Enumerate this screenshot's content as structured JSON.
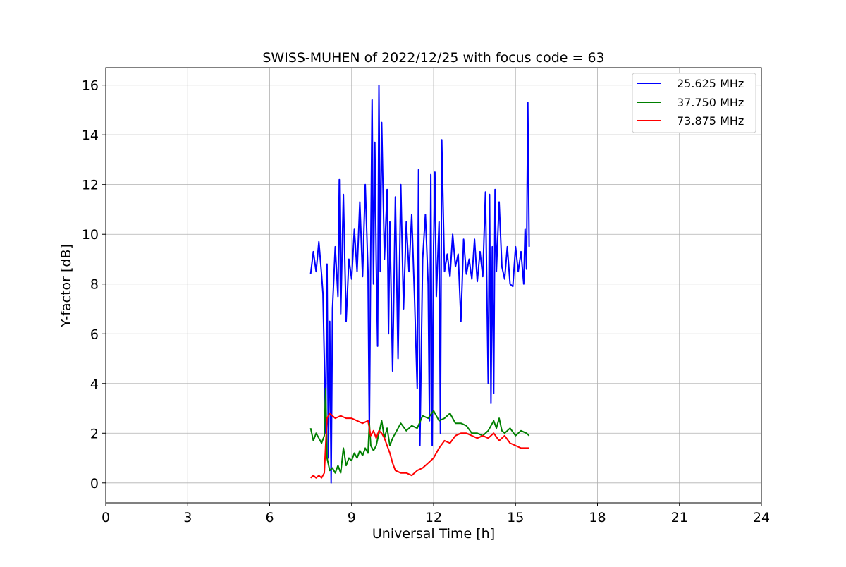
{
  "chart_data": {
    "type": "line",
    "title": "SWISS-MUHEN of 2022/12/25 with focus code = 63",
    "xlabel": "Universal Time [h]",
    "ylabel": "Y-factor [dB]",
    "xlim": [
      0,
      24
    ],
    "ylim": [
      -0.8,
      16.7
    ],
    "xticks": [
      0,
      3,
      6,
      9,
      12,
      15,
      18,
      21,
      24
    ],
    "yticks": [
      0,
      2,
      4,
      6,
      8,
      10,
      12,
      14,
      16
    ],
    "grid": true,
    "legend_position": "top-right",
    "series": [
      {
        "name": "25.625 MHz",
        "color": "#0000ff",
        "points": [
          [
            7.5,
            8.4
          ],
          [
            7.6,
            9.3
          ],
          [
            7.7,
            8.5
          ],
          [
            7.8,
            9.7
          ],
          [
            7.9,
            8.4
          ],
          [
            7.95,
            7.6
          ],
          [
            8.0,
            5.0
          ],
          [
            8.05,
            2.0
          ],
          [
            8.1,
            8.8
          ],
          [
            8.15,
            1.0
          ],
          [
            8.2,
            6.5
          ],
          [
            8.25,
            0.0
          ],
          [
            8.3,
            7.0
          ],
          [
            8.4,
            9.5
          ],
          [
            8.5,
            7.5
          ],
          [
            8.55,
            12.2
          ],
          [
            8.6,
            6.8
          ],
          [
            8.7,
            11.6
          ],
          [
            8.8,
            6.5
          ],
          [
            8.9,
            9.0
          ],
          [
            9.0,
            8.2
          ],
          [
            9.1,
            10.2
          ],
          [
            9.2,
            8.5
          ],
          [
            9.3,
            11.3
          ],
          [
            9.4,
            8.3
          ],
          [
            9.5,
            12.0
          ],
          [
            9.6,
            8.5
          ],
          [
            9.65,
            2.0
          ],
          [
            9.7,
            9.5
          ],
          [
            9.75,
            15.4
          ],
          [
            9.8,
            8.0
          ],
          [
            9.85,
            13.7
          ],
          [
            9.9,
            9.0
          ],
          [
            9.95,
            5.5
          ],
          [
            10.0,
            16.0
          ],
          [
            10.05,
            8.5
          ],
          [
            10.1,
            14.5
          ],
          [
            10.2,
            9.0
          ],
          [
            10.3,
            11.8
          ],
          [
            10.35,
            6.0
          ],
          [
            10.4,
            10.5
          ],
          [
            10.5,
            4.5
          ],
          [
            10.6,
            11.5
          ],
          [
            10.7,
            5.0
          ],
          [
            10.8,
            12.0
          ],
          [
            10.9,
            7.0
          ],
          [
            11.0,
            10.5
          ],
          [
            11.1,
            8.5
          ],
          [
            11.2,
            10.8
          ],
          [
            11.3,
            7.5
          ],
          [
            11.4,
            3.8
          ],
          [
            11.45,
            12.6
          ],
          [
            11.5,
            1.5
          ],
          [
            11.6,
            9.0
          ],
          [
            11.7,
            10.8
          ],
          [
            11.8,
            8.0
          ],
          [
            11.85,
            2.5
          ],
          [
            11.9,
            12.4
          ],
          [
            11.95,
            1.5
          ],
          [
            12.0,
            9.5
          ],
          [
            12.05,
            12.5
          ],
          [
            12.1,
            7.5
          ],
          [
            12.2,
            10.5
          ],
          [
            12.25,
            2.0
          ],
          [
            12.3,
            13.8
          ],
          [
            12.4,
            8.5
          ],
          [
            12.5,
            9.2
          ],
          [
            12.6,
            8.3
          ],
          [
            12.7,
            10.0
          ],
          [
            12.8,
            8.7
          ],
          [
            12.9,
            9.2
          ],
          [
            13.0,
            6.5
          ],
          [
            13.1,
            9.8
          ],
          [
            13.2,
            8.4
          ],
          [
            13.3,
            9.0
          ],
          [
            13.4,
            8.2
          ],
          [
            13.5,
            9.8
          ],
          [
            13.6,
            8.1
          ],
          [
            13.7,
            9.3
          ],
          [
            13.8,
            8.3
          ],
          [
            13.9,
            11.7
          ],
          [
            14.0,
            4.0
          ],
          [
            14.05,
            11.6
          ],
          [
            14.1,
            3.2
          ],
          [
            14.15,
            9.5
          ],
          [
            14.2,
            3.6
          ],
          [
            14.25,
            11.8
          ],
          [
            14.3,
            8.5
          ],
          [
            14.4,
            11.3
          ],
          [
            14.5,
            8.7
          ],
          [
            14.6,
            8.2
          ],
          [
            14.7,
            9.5
          ],
          [
            14.8,
            8.0
          ],
          [
            14.9,
            7.9
          ],
          [
            15.0,
            9.5
          ],
          [
            15.1,
            8.5
          ],
          [
            15.2,
            9.3
          ],
          [
            15.3,
            8.0
          ],
          [
            15.35,
            10.2
          ],
          [
            15.4,
            8.6
          ],
          [
            15.45,
            15.3
          ],
          [
            15.5,
            9.5
          ]
        ]
      },
      {
        "name": "37.750 MHz",
        "color": "#008000",
        "points": [
          [
            7.5,
            2.2
          ],
          [
            7.6,
            1.7
          ],
          [
            7.7,
            2.0
          ],
          [
            7.8,
            1.8
          ],
          [
            7.9,
            1.6
          ],
          [
            8.0,
            1.9
          ],
          [
            8.05,
            3.8
          ],
          [
            8.1,
            1.0
          ],
          [
            8.2,
            0.5
          ],
          [
            8.3,
            0.6
          ],
          [
            8.4,
            0.4
          ],
          [
            8.5,
            0.7
          ],
          [
            8.6,
            0.4
          ],
          [
            8.7,
            1.4
          ],
          [
            8.8,
            0.7
          ],
          [
            8.9,
            1.0
          ],
          [
            9.0,
            0.9
          ],
          [
            9.1,
            1.2
          ],
          [
            9.2,
            1.0
          ],
          [
            9.3,
            1.3
          ],
          [
            9.4,
            1.1
          ],
          [
            9.5,
            1.4
          ],
          [
            9.6,
            1.2
          ],
          [
            9.65,
            2.4
          ],
          [
            9.7,
            1.5
          ],
          [
            9.8,
            1.3
          ],
          [
            9.9,
            1.5
          ],
          [
            10.0,
            2.0
          ],
          [
            10.1,
            2.5
          ],
          [
            10.2,
            1.8
          ],
          [
            10.3,
            2.2
          ],
          [
            10.4,
            1.5
          ],
          [
            10.5,
            1.8
          ],
          [
            10.6,
            2.0
          ],
          [
            10.8,
            2.4
          ],
          [
            11.0,
            2.1
          ],
          [
            11.2,
            2.3
          ],
          [
            11.4,
            2.2
          ],
          [
            11.6,
            2.7
          ],
          [
            11.8,
            2.6
          ],
          [
            12.0,
            2.9
          ],
          [
            12.2,
            2.5
          ],
          [
            12.4,
            2.6
          ],
          [
            12.6,
            2.8
          ],
          [
            12.8,
            2.4
          ],
          [
            13.0,
            2.4
          ],
          [
            13.2,
            2.3
          ],
          [
            13.4,
            2.0
          ],
          [
            13.6,
            2.0
          ],
          [
            13.8,
            1.9
          ],
          [
            14.0,
            2.1
          ],
          [
            14.2,
            2.5
          ],
          [
            14.3,
            2.2
          ],
          [
            14.4,
            2.6
          ],
          [
            14.5,
            2.1
          ],
          [
            14.6,
            2.0
          ],
          [
            14.8,
            2.2
          ],
          [
            15.0,
            1.9
          ],
          [
            15.2,
            2.1
          ],
          [
            15.4,
            2.0
          ],
          [
            15.5,
            1.9
          ]
        ]
      },
      {
        "name": "73.875 MHz",
        "color": "#ff0000",
        "points": [
          [
            7.5,
            0.2
          ],
          [
            7.6,
            0.3
          ],
          [
            7.7,
            0.2
          ],
          [
            7.8,
            0.3
          ],
          [
            7.9,
            0.2
          ],
          [
            8.0,
            0.4
          ],
          [
            8.05,
            1.5
          ],
          [
            8.1,
            2.6
          ],
          [
            8.2,
            2.8
          ],
          [
            8.4,
            2.6
          ],
          [
            8.6,
            2.7
          ],
          [
            8.8,
            2.6
          ],
          [
            9.0,
            2.6
          ],
          [
            9.2,
            2.5
          ],
          [
            9.4,
            2.4
          ],
          [
            9.6,
            2.5
          ],
          [
            9.7,
            1.9
          ],
          [
            9.8,
            2.1
          ],
          [
            9.9,
            1.8
          ],
          [
            10.0,
            2.1
          ],
          [
            10.1,
            2.0
          ],
          [
            10.2,
            1.8
          ],
          [
            10.3,
            1.5
          ],
          [
            10.4,
            1.2
          ],
          [
            10.5,
            0.8
          ],
          [
            10.6,
            0.5
          ],
          [
            10.8,
            0.4
          ],
          [
            11.0,
            0.4
          ],
          [
            11.2,
            0.3
          ],
          [
            11.4,
            0.5
          ],
          [
            11.6,
            0.6
          ],
          [
            11.8,
            0.8
          ],
          [
            12.0,
            1.0
          ],
          [
            12.2,
            1.4
          ],
          [
            12.4,
            1.7
          ],
          [
            12.6,
            1.6
          ],
          [
            12.8,
            1.9
          ],
          [
            13.0,
            2.0
          ],
          [
            13.2,
            2.0
          ],
          [
            13.4,
            1.9
          ],
          [
            13.6,
            1.8
          ],
          [
            13.8,
            1.9
          ],
          [
            14.0,
            1.8
          ],
          [
            14.2,
            2.0
          ],
          [
            14.4,
            1.7
          ],
          [
            14.6,
            1.9
          ],
          [
            14.8,
            1.6
          ],
          [
            15.0,
            1.5
          ],
          [
            15.2,
            1.4
          ],
          [
            15.4,
            1.4
          ],
          [
            15.5,
            1.4
          ]
        ]
      }
    ]
  }
}
